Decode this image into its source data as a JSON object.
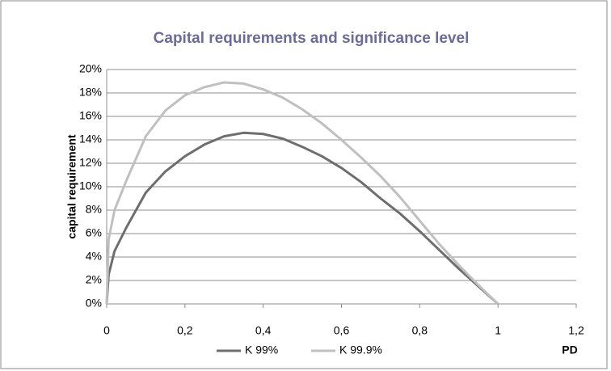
{
  "chart_data": {
    "type": "line",
    "title": "Capital requirements and significance level",
    "xlabel": "PD",
    "ylabel": "capital requirement",
    "x": [
      0,
      0.005,
      0.02,
      0.05,
      0.1,
      0.15,
      0.2,
      0.25,
      0.3,
      0.35,
      0.4,
      0.45,
      0.5,
      0.55,
      0.6,
      0.65,
      0.7,
      0.75,
      0.8,
      0.85,
      0.9,
      0.95,
      1
    ],
    "series": [
      {
        "name": "K 99%",
        "color": "#6e6e6e",
        "values": [
          0,
          2.5,
          4.5,
          6.5,
          9.5,
          11.3,
          12.6,
          13.6,
          14.3,
          14.6,
          14.5,
          14.1,
          13.4,
          12.6,
          11.6,
          10.4,
          9.0,
          7.7,
          6.2,
          4.6,
          3.0,
          1.5,
          0
        ]
      },
      {
        "name": "K 99.9%",
        "color": "#c0c0c0",
        "values": [
          0,
          5.5,
          8,
          10.5,
          14.3,
          16.5,
          17.8,
          18.5,
          18.9,
          18.8,
          18.3,
          17.6,
          16.6,
          15.4,
          14.0,
          12.5,
          10.9,
          9.1,
          7.1,
          5.1,
          3.3,
          1.6,
          0
        ]
      }
    ],
    "xlim": [
      0,
      1.2
    ],
    "xticks": [
      0,
      {
        "value": 0.2,
        "label": "0,2"
      },
      {
        "value": 0.4,
        "label": "0,4"
      },
      {
        "value": 0.6,
        "label": "0,6"
      },
      {
        "value": 0.8,
        "label": "0,8"
      },
      1,
      {
        "value": 1.2,
        "label": "1,2"
      }
    ],
    "ylim": [
      0,
      20
    ],
    "yticks": [
      {
        "value": 0,
        "label": "0%"
      },
      {
        "value": 2,
        "label": "2%"
      },
      {
        "value": 4,
        "label": "4%"
      },
      {
        "value": 6,
        "label": "6%"
      },
      {
        "value": 8,
        "label": "8%"
      },
      {
        "value": 10,
        "label": "10%"
      },
      {
        "value": 12,
        "label": "12%"
      },
      {
        "value": 14,
        "label": "14%"
      },
      {
        "value": 16,
        "label": "16%"
      },
      {
        "value": 18,
        "label": "18%"
      },
      {
        "value": 20,
        "label": "20%"
      }
    ],
    "grid": true,
    "legend": "bottom"
  }
}
